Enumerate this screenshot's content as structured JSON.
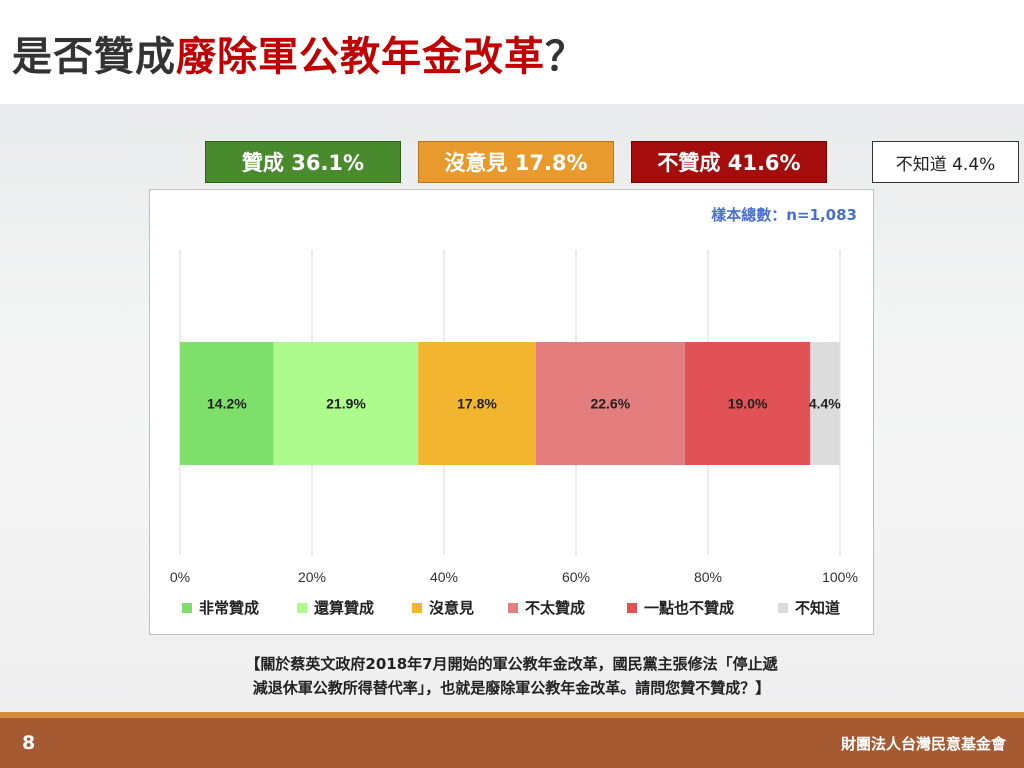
{
  "title": {
    "prefix": "是否贊成",
    "highlight": "廢除軍公教年金改革",
    "suffix": "？"
  },
  "summary": {
    "agree": "贊成 36.1%",
    "neutral": "沒意見 17.8%",
    "disagree": "不贊成 41.6%",
    "unknown": "不知道 4.4%"
  },
  "sample_size": "樣本總數：n=1,083",
  "chart_data": {
    "type": "bar",
    "orientation": "horizontal-stacked-100",
    "categories": [
      ""
    ],
    "series": [
      {
        "name": "非常贊成",
        "values": [
          14.2
        ],
        "label": "14.2%",
        "color": "#7ee06a"
      },
      {
        "name": "還算贊成",
        "values": [
          21.9
        ],
        "label": "21.9%",
        "color": "#adfb8c"
      },
      {
        "name": "沒意見",
        "values": [
          17.8
        ],
        "label": "17.8%",
        "color": "#f1b52f"
      },
      {
        "name": "不太贊成",
        "values": [
          22.6
        ],
        "label": "22.6%",
        "color": "#e47d7d"
      },
      {
        "name": "一點也不贊成",
        "values": [
          19.0
        ],
        "label": "19.0%",
        "color": "#e05256"
      },
      {
        "name": "不知道",
        "values": [
          4.4
        ],
        "label": "4.4%",
        "color": "#dcdcdc"
      }
    ],
    "x_ticks": [
      "0%",
      "20%",
      "40%",
      "60%",
      "80%",
      "100%"
    ],
    "xlim": [
      0,
      100
    ],
    "grid": true,
    "legend_position": "bottom"
  },
  "question": {
    "line1": "【關於蔡英文政府2018年7月開始的軍公教年金改革，國民黨主張修法「停止遞",
    "line2": "減退休軍公教所得替代率」，也就是廢除軍公教年金改革。請問您贊不贊成？】"
  },
  "footer": {
    "page": "8",
    "organization": "財團法人台灣民意基金會"
  }
}
